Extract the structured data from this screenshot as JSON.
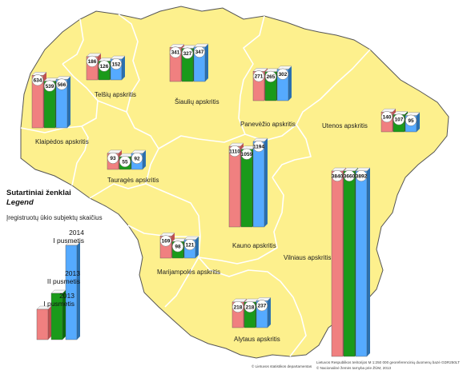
{
  "legend": {
    "title": "Sutartiniai ženklai",
    "subtitle": "Legend",
    "description": "Įregistruotų ūkio subjektų skaičius",
    "periods": [
      {
        "year": "2013",
        "half": "I pusmetis",
        "color": "#f08080"
      },
      {
        "year": "2013",
        "half": "II pusmetis",
        "color": "#1a9a1a"
      },
      {
        "year": "2014",
        "half": "I pusmetis",
        "color": "#55aaff"
      }
    ],
    "sample_values": [
      1,
      2,
      5
    ]
  },
  "regions": [
    {
      "id": "klaipedos",
      "name": "Klaipėdos apskritis",
      "values": [
        634,
        539,
        566
      ]
    },
    {
      "id": "telsiu",
      "name": "Telšių apskritis",
      "values": [
        186,
        126,
        152
      ]
    },
    {
      "id": "siauliu",
      "name": "Šiaulių apskritis",
      "values": [
        341,
        327,
        347
      ]
    },
    {
      "id": "panevezio",
      "name": "Panevėžio apskritis",
      "values": [
        271,
        265,
        302
      ]
    },
    {
      "id": "utenos",
      "name": "Utenos apskritis",
      "values": [
        140,
        107,
        95
      ]
    },
    {
      "id": "taurages",
      "name": "Tauragės apskritis",
      "values": [
        93,
        55,
        92
      ]
    },
    {
      "id": "kauno",
      "name": "Kauno apskritis",
      "values": [
        1110,
        1059,
        1194
      ]
    },
    {
      "id": "marijampoles",
      "name": "Marijampolės apskritis",
      "values": [
        169,
        98,
        121
      ]
    },
    {
      "id": "vilniaus",
      "name": "Vilniaus apskritis",
      "values": [
        3840,
        3660,
        3892
      ]
    },
    {
      "id": "alytaus",
      "name": "Alytaus apskritis",
      "values": [
        218,
        218,
        237
      ]
    }
  ],
  "credits": {
    "left": "© Lietuvos statistikos departamentas",
    "right1": "Lietuvos Respublikos teritorijos M 1:250 000 georeferencinių duomenų bazė GDR250LT",
    "right2": "© Nacionalinė žemės tarnyba prie ŽŪM, 2013"
  },
  "colors": {
    "land": "#fdf08d",
    "border": "#ffffff",
    "outline": "#444444"
  }
}
